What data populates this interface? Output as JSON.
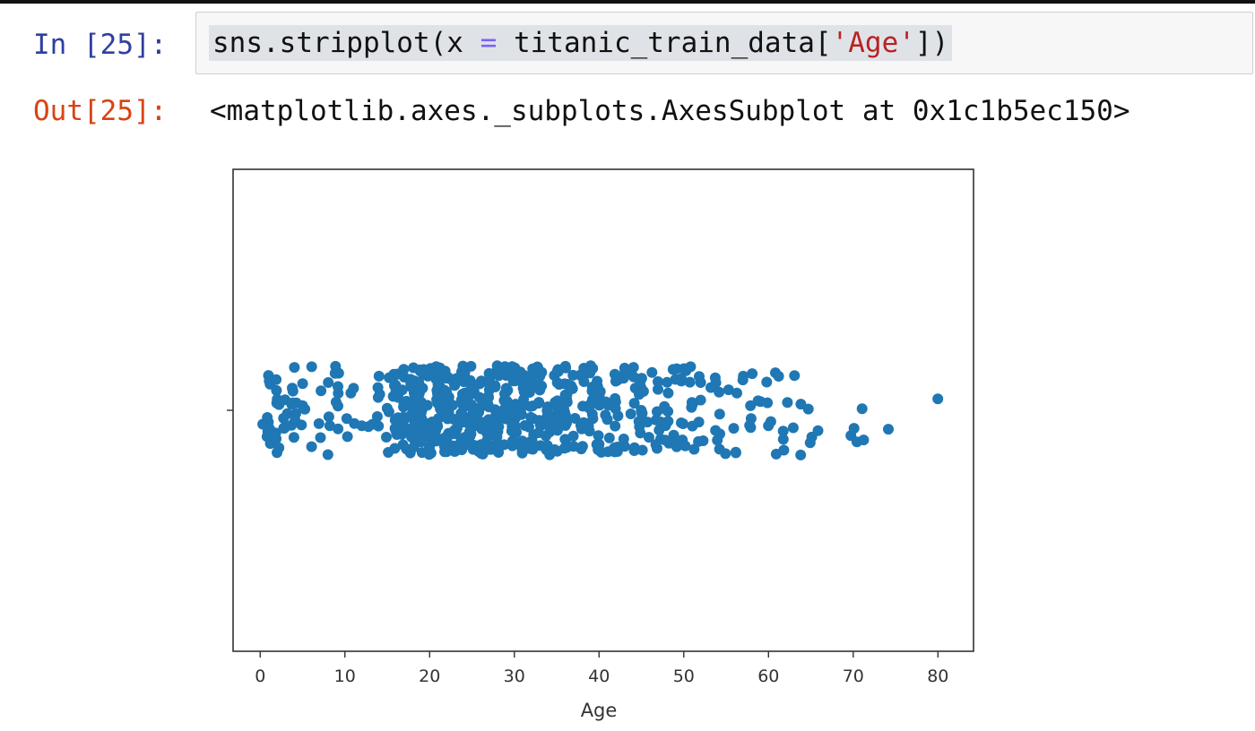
{
  "cell_in": {
    "prompt": "In [25]:",
    "code_prefix": "sns.stripplot(x ",
    "code_op": "=",
    "code_mid": " titanic_train_data[",
    "code_str": "'Age'",
    "code_suffix": "])"
  },
  "cell_out": {
    "prompt": "Out[25]:",
    "text": "<matplotlib.axes._subplots.AxesSubplot at 0x1c1b5ec150>"
  },
  "colors": {
    "accent": "#1f77b4",
    "prompt_in": "#303f9f",
    "prompt_out": "#d84315"
  },
  "chart_data": {
    "type": "scatter",
    "title": "",
    "xlabel": "Age",
    "ylabel": "",
    "xlim": [
      -3.2,
      84.2
    ],
    "xticks": [
      0,
      10,
      20,
      30,
      40,
      50,
      60,
      70,
      80
    ],
    "xtick_labels": [
      "0",
      "10",
      "20",
      "30",
      "40",
      "50",
      "60",
      "70",
      "80"
    ],
    "jitter": [
      -0.25,
      0.25
    ],
    "marker_color": "#1f77b4",
    "series": [
      {
        "name": "Age",
        "x": [
          0.42,
          0.67,
          0.75,
          0.83,
          0.92,
          1,
          1,
          1,
          1,
          1,
          1,
          1,
          2,
          2,
          2,
          2,
          2,
          2,
          2,
          2,
          2,
          2,
          3,
          3,
          3,
          3,
          3,
          3,
          4,
          4,
          4,
          4,
          4,
          4,
          4,
          4,
          4,
          4,
          5,
          5,
          5,
          5,
          6,
          6,
          7,
          7,
          7,
          8,
          8,
          8,
          8,
          9,
          9,
          9,
          9,
          9,
          9,
          9,
          9,
          10,
          10,
          11,
          11,
          11,
          12,
          13,
          13,
          14,
          14,
          14,
          14,
          14,
          14,
          15,
          15,
          15,
          15,
          15,
          16,
          16,
          16,
          16,
          16,
          16,
          16,
          16,
          16,
          16,
          16,
          16,
          16,
          16,
          16,
          16,
          16,
          17,
          17,
          17,
          17,
          17,
          17,
          17,
          17,
          17,
          17,
          17,
          17,
          17,
          18,
          18,
          18,
          18,
          18,
          18,
          18,
          18,
          18,
          18,
          18,
          18,
          18,
          18,
          18,
          18,
          18,
          18,
          18,
          18,
          18,
          18,
          18,
          18,
          18,
          18,
          19,
          19,
          19,
          19,
          19,
          19,
          19,
          19,
          19,
          19,
          19,
          19,
          19,
          19,
          19,
          19,
          19,
          19,
          19,
          19,
          19,
          19,
          19,
          19,
          19,
          20,
          20,
          20,
          20,
          20,
          20,
          20,
          20,
          20,
          20,
          20,
          20,
          20,
          20,
          20,
          21,
          21,
          21,
          21,
          21,
          21,
          21,
          21,
          21,
          21,
          21,
          21,
          21,
          21,
          21,
          21,
          21,
          21,
          21,
          21,
          21,
          21,
          21,
          21,
          22,
          22,
          22,
          22,
          22,
          22,
          22,
          22,
          22,
          22,
          22,
          22,
          22,
          22,
          22,
          22,
          22,
          22,
          22,
          22,
          22,
          22,
          22,
          22,
          22,
          22,
          22,
          23,
          23,
          23,
          23,
          23,
          23,
          23,
          23,
          23,
          23,
          23,
          23,
          23,
          23,
          23,
          24,
          24,
          24,
          24,
          24,
          24,
          24,
          24,
          24,
          24,
          24,
          24,
          24,
          24,
          24,
          24,
          24,
          24,
          24,
          24,
          24,
          24,
          24,
          24,
          24,
          24,
          24,
          24,
          24,
          24,
          25,
          25,
          25,
          25,
          25,
          25,
          25,
          25,
          25,
          25,
          25,
          25,
          25,
          25,
          25,
          25,
          25,
          25,
          25,
          25,
          25,
          25,
          25,
          26,
          26,
          26,
          26,
          26,
          26,
          26,
          26,
          26,
          26,
          26,
          26,
          26,
          26,
          26,
          26,
          26,
          26,
          27,
          27,
          27,
          27,
          27,
          27,
          27,
          27,
          27,
          27,
          27,
          27,
          27,
          27,
          27,
          27,
          27,
          27,
          28,
          28,
          28,
          28,
          28,
          28,
          28,
          28,
          28,
          28,
          28,
          28,
          28,
          28,
          28,
          28,
          28,
          28,
          28,
          28,
          28,
          28,
          28,
          28,
          28,
          29,
          29,
          29,
          29,
          29,
          29,
          29,
          29,
          29,
          29,
          29,
          29,
          29,
          29,
          29,
          29,
          29,
          29,
          29,
          29,
          30,
          30,
          30,
          30,
          30,
          30,
          30,
          30,
          30,
          30,
          30,
          30,
          30,
          30,
          30,
          30,
          30,
          30,
          30,
          30,
          30,
          30,
          30,
          30,
          30,
          31,
          31,
          31,
          31,
          31,
          31,
          31,
          31,
          31,
          31,
          31,
          31,
          31,
          31,
          31,
          31,
          31,
          32,
          32,
          32,
          32,
          32,
          32,
          32,
          32,
          32,
          32,
          32,
          32,
          32,
          32,
          32,
          32,
          32,
          32,
          33,
          33,
          33,
          33,
          33,
          33,
          33,
          33,
          33,
          33,
          33,
          33,
          33,
          33,
          33,
          34,
          34,
          34,
          34,
          34,
          34,
          34,
          34,
          34,
          34,
          34,
          34,
          34,
          34,
          34,
          35,
          35,
          35,
          35,
          35,
          35,
          35,
          35,
          35,
          35,
          35,
          35,
          35,
          35,
          35,
          35,
          35,
          35,
          36,
          36,
          36,
          36,
          36,
          36,
          36,
          36,
          36,
          36,
          36,
          36,
          36,
          36,
          36,
          36,
          36,
          36,
          36,
          36,
          36,
          36,
          37,
          37,
          37,
          37,
          37,
          37,
          38,
          38,
          38,
          38,
          38,
          38,
          38,
          38,
          38,
          38,
          38,
          39,
          39,
          39,
          39,
          39,
          39,
          39,
          39,
          39,
          39,
          39,
          39,
          39,
          39,
          40,
          40,
          40,
          40,
          40,
          40,
          40,
          40,
          40,
          40,
          40,
          40,
          40,
          41,
          41,
          41,
          41,
          41,
          41,
          42,
          42,
          42,
          42,
          42,
          42,
          42,
          42,
          42,
          42,
          42,
          42,
          42,
          43,
          43,
          43,
          43,
          43,
          44,
          44,
          44,
          44,
          44,
          44,
          44,
          44,
          44,
          45,
          45,
          45,
          45,
          45,
          45,
          45,
          45,
          45,
          45,
          45,
          45,
          46,
          46,
          46,
          47,
          47,
          47,
          47,
          47,
          47,
          47,
          47,
          47,
          48,
          48,
          48,
          48,
          48,
          48,
          48,
          48,
          48,
          49,
          49,
          49,
          49,
          49,
          49,
          50,
          50,
          50,
          50,
          50,
          50,
          50,
          50,
          50,
          50,
          51,
          51,
          51,
          51,
          51,
          51,
          51,
          52,
          52,
          52,
          52,
          52,
          52,
          53,
          54,
          54,
          54,
          54,
          54,
          54,
          54,
          54,
          55,
          55,
          56,
          56,
          56,
          56,
          57,
          57,
          58,
          58,
          58,
          58,
          58,
          59,
          59,
          60,
          60,
          60,
          60,
          61,
          61,
          61,
          62,
          62,
          62,
          62,
          63,
          63,
          64,
          64,
          65,
          65,
          65,
          66,
          70,
          70,
          70.5,
          71,
          71,
          74,
          80
        ]
      }
    ]
  }
}
